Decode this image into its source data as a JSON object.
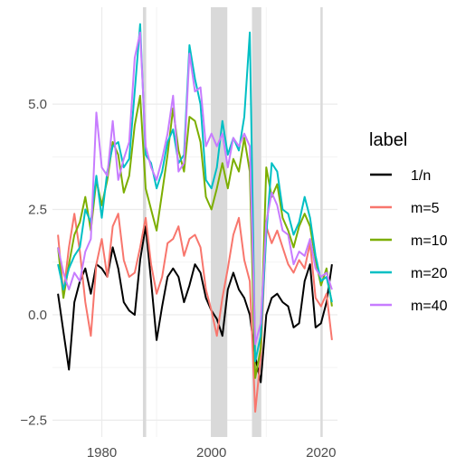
{
  "chart_data": {
    "type": "line",
    "xlim": [
      1971,
      2023
    ],
    "ylim": [
      -2.9,
      7.3
    ],
    "x_ticks": [
      1980,
      2000,
      2020
    ],
    "y_ticks": [
      -2.5,
      0.0,
      2.5,
      5.0
    ],
    "y_tick_labels": [
      "−2.5",
      "0.0",
      "2.5",
      "5.0"
    ],
    "grid": true,
    "legend": {
      "title": "label",
      "placement": "right"
    },
    "shaded_periods": [
      [
        1987.5,
        1988.1
      ],
      [
        1999.9,
        2002.9
      ],
      [
        2007.4,
        2009.1
      ],
      [
        2019.9,
        2020.3
      ]
    ],
    "shade_color": "#d9d9d9",
    "series": [
      {
        "name": "1/n",
        "color": "#000000",
        "x": [
          1972,
          1973,
          1974,
          1975,
          1976,
          1977,
          1978,
          1979,
          1980,
          1981,
          1982,
          1983,
          1984,
          1985,
          1986,
          1987,
          1988,
          1989,
          1990,
          1991,
          1992,
          1993,
          1994,
          1995,
          1996,
          1997,
          1998,
          1999,
          2000,
          2001,
          2002,
          2003,
          2004,
          2005,
          2006,
          2007,
          2008,
          2009,
          2010,
          2011,
          2012,
          2013,
          2014,
          2015,
          2016,
          2017,
          2018,
          2019,
          2020,
          2021,
          2022
        ],
        "y": [
          0.5,
          -0.4,
          -1.3,
          0.3,
          0.8,
          1.1,
          0.5,
          1.2,
          1.1,
          0.9,
          1.6,
          1.1,
          0.3,
          0.1,
          0.0,
          1.3,
          2.1,
          0.8,
          -0.6,
          0.2,
          0.9,
          1.1,
          0.9,
          0.3,
          0.7,
          1.2,
          1.0,
          0.4,
          0.1,
          -0.1,
          -0.5,
          0.6,
          1.0,
          0.6,
          0.4,
          0.0,
          -1.0,
          -1.6,
          0.0,
          0.4,
          0.5,
          0.3,
          0.2,
          -0.3,
          -0.2,
          0.8,
          1.2,
          -0.3,
          -0.2,
          0.3,
          1.2
        ]
      },
      {
        "name": "m=5",
        "color": "#F8766D",
        "x": [
          1972,
          1973,
          1974,
          1975,
          1976,
          1977,
          1978,
          1979,
          1980,
          1981,
          1982,
          1983,
          1984,
          1985,
          1986,
          1987,
          1988,
          1989,
          1990,
          1991,
          1992,
          1993,
          1994,
          1995,
          1996,
          1997,
          1998,
          1999,
          2000,
          2001,
          2002,
          2003,
          2004,
          2005,
          2006,
          2007,
          2008,
          2009,
          2010,
          2011,
          2012,
          2013,
          2014,
          2015,
          2016,
          2017,
          2018,
          2019,
          2020,
          2021,
          2022
        ],
        "y": [
          1.9,
          0.5,
          1.6,
          2.4,
          1.5,
          0.3,
          -0.5,
          1.2,
          1.8,
          0.9,
          2.1,
          2.4,
          1.3,
          0.9,
          1.0,
          1.6,
          2.3,
          1.2,
          0.5,
          0.9,
          1.7,
          1.8,
          2.1,
          1.4,
          1.8,
          1.9,
          1.6,
          0.6,
          0.1,
          -0.5,
          0.4,
          1.1,
          1.9,
          2.3,
          1.3,
          0.8,
          -2.3,
          -1.0,
          2.1,
          1.7,
          2.0,
          1.6,
          1.2,
          1.0,
          1.3,
          1.1,
          1.7,
          0.4,
          0.2,
          0.5,
          -0.6
        ]
      },
      {
        "name": "m=10",
        "color": "#7CAE00",
        "x": [
          1972,
          1973,
          1974,
          1975,
          1976,
          1977,
          1978,
          1979,
          1980,
          1981,
          1982,
          1983,
          1984,
          1985,
          1986,
          1987,
          1988,
          1989,
          1990,
          1991,
          1992,
          1993,
          1994,
          1995,
          1996,
          1997,
          1998,
          1999,
          2000,
          2001,
          2002,
          2003,
          2004,
          2005,
          2006,
          2007,
          2008,
          2009,
          2010,
          2011,
          2012,
          2013,
          2014,
          2015,
          2016,
          2017,
          2018,
          2019,
          2020,
          2021,
          2022
        ],
        "y": [
          1.6,
          0.4,
          1.2,
          1.9,
          2.2,
          2.8,
          2.0,
          3.2,
          2.6,
          3.2,
          4.1,
          3.8,
          2.9,
          3.3,
          4.5,
          5.2,
          3.0,
          2.5,
          2.0,
          2.9,
          3.8,
          4.9,
          3.9,
          3.4,
          4.7,
          4.6,
          4.1,
          2.8,
          2.5,
          3.0,
          3.6,
          3.0,
          3.7,
          3.4,
          4.2,
          3.4,
          -1.5,
          -0.8,
          3.5,
          2.8,
          3.1,
          2.3,
          2.0,
          1.6,
          2.1,
          2.4,
          2.1,
          1.3,
          0.7,
          1.1,
          0.2
        ]
      },
      {
        "name": "m=20",
        "color": "#00BFC4",
        "x": [
          1972,
          1973,
          1974,
          1975,
          1976,
          1977,
          1978,
          1979,
          1980,
          1981,
          1982,
          1983,
          1984,
          1985,
          1986,
          1987,
          1988,
          1989,
          1990,
          1991,
          1992,
          1993,
          1994,
          1995,
          1996,
          1997,
          1998,
          1999,
          2000,
          2001,
          2002,
          2003,
          2004,
          2005,
          2006,
          2007,
          2008,
          2009,
          2010,
          2011,
          2012,
          2013,
          2014,
          2015,
          2016,
          2017,
          2018,
          2019,
          2020,
          2021,
          2022
        ],
        "y": [
          1.2,
          0.6,
          1.1,
          1.4,
          1.6,
          2.5,
          2.2,
          3.3,
          2.3,
          3.4,
          4.0,
          4.1,
          3.5,
          3.7,
          5.3,
          6.9,
          3.8,
          3.6,
          3.0,
          3.4,
          4.1,
          4.4,
          3.6,
          3.8,
          6.4,
          5.6,
          5.0,
          3.2,
          3.0,
          3.5,
          4.6,
          3.8,
          4.2,
          3.9,
          4.7,
          6.7,
          -1.1,
          -0.5,
          1.9,
          3.6,
          3.4,
          2.5,
          2.4,
          1.9,
          2.2,
          2.8,
          2.3,
          1.4,
          0.8,
          0.9,
          0.3
        ]
      },
      {
        "name": "m=40",
        "color": "#C77CFF",
        "x": [
          1972,
          1973,
          1974,
          1975,
          1976,
          1977,
          1978,
          1979,
          1980,
          1981,
          1982,
          1983,
          1984,
          1985,
          1986,
          1987,
          1988,
          1989,
          1990,
          1991,
          1992,
          1993,
          1994,
          1995,
          1996,
          1997,
          1998,
          1999,
          2000,
          2001,
          2002,
          2003,
          2004,
          2005,
          2006,
          2007,
          2008,
          2009,
          2010,
          2011,
          2012,
          2013,
          2014,
          2015,
          2016,
          2017,
          2018,
          2019,
          2020,
          2021,
          2022
        ],
        "y": [
          1.6,
          1.0,
          0.6,
          1.0,
          0.8,
          1.5,
          1.8,
          4.8,
          3.5,
          3.3,
          4.6,
          3.2,
          3.7,
          4.1,
          6.1,
          6.7,
          4.0,
          3.5,
          3.2,
          3.7,
          4.3,
          5.2,
          3.4,
          3.6,
          6.2,
          5.3,
          5.4,
          4.0,
          4.3,
          4.0,
          4.3,
          3.5,
          4.2,
          4.0,
          4.3,
          4.0,
          -0.7,
          -0.2,
          2.2,
          2.9,
          2.6,
          2.0,
          1.9,
          1.2,
          1.5,
          1.4,
          1.8,
          1.1,
          0.9,
          1.0,
          0.6
        ]
      }
    ]
  }
}
